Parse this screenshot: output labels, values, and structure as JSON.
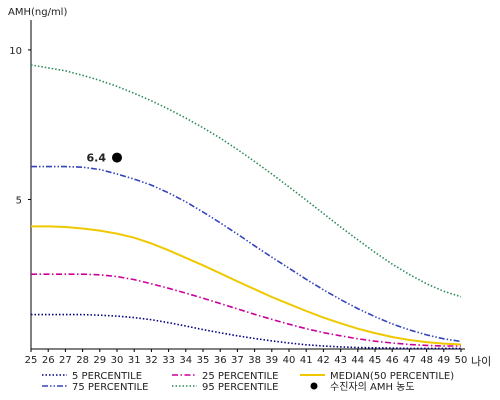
{
  "chart_data": {
    "type": "line",
    "ylabel": "AMH(ng/ml)",
    "xlabel": "나이",
    "xlim": [
      25,
      50
    ],
    "ylim": [
      0,
      11
    ],
    "x_ticks": [
      25,
      26,
      27,
      28,
      29,
      30,
      31,
      32,
      33,
      34,
      35,
      36,
      37,
      38,
      39,
      40,
      41,
      42,
      43,
      44,
      45,
      46,
      47,
      48,
      49,
      50
    ],
    "y_ticks": [
      5,
      10
    ],
    "grid": false,
    "legend_position": "bottom",
    "x": [
      25,
      26,
      27,
      28,
      29,
      30,
      31,
      32,
      33,
      34,
      35,
      36,
      37,
      38,
      39,
      40,
      41,
      42,
      43,
      44,
      45,
      46,
      47,
      48,
      49,
      50
    ],
    "series": [
      {
        "name": "5 PERCENTILE",
        "color": "#000080",
        "dash": "dotted",
        "values": [
          1.15,
          1.15,
          1.15,
          1.15,
          1.13,
          1.1,
          1.05,
          0.98,
          0.88,
          0.77,
          0.65,
          0.54,
          0.44,
          0.35,
          0.27,
          0.2,
          0.14,
          0.1,
          0.07,
          0.05,
          0.04,
          0.03,
          0.02,
          0.02,
          0.02,
          0.02
        ]
      },
      {
        "name": "25 PERCENTILE",
        "color": "#cc0099",
        "dash": "dashdot",
        "values": [
          2.5,
          2.5,
          2.5,
          2.5,
          2.48,
          2.42,
          2.32,
          2.18,
          2.03,
          1.87,
          1.7,
          1.52,
          1.34,
          1.16,
          0.99,
          0.83,
          0.68,
          0.55,
          0.44,
          0.34,
          0.26,
          0.2,
          0.15,
          0.12,
          0.1,
          0.1
        ]
      },
      {
        "name": "MEDIAN(50 PERCENTILE)",
        "color": "#f0c800",
        "dash": "solid",
        "values": [
          4.1,
          4.1,
          4.08,
          4.03,
          3.96,
          3.86,
          3.72,
          3.53,
          3.3,
          3.05,
          2.8,
          2.53,
          2.26,
          2.0,
          1.74,
          1.5,
          1.27,
          1.05,
          0.86,
          0.68,
          0.53,
          0.4,
          0.3,
          0.23,
          0.18,
          0.15
        ]
      },
      {
        "name": "75 PERCENTILE",
        "color": "#3344bb",
        "dash": "dashdotdot",
        "values": [
          6.1,
          6.1,
          6.1,
          6.08,
          6.0,
          5.85,
          5.68,
          5.48,
          5.22,
          4.92,
          4.58,
          4.22,
          3.84,
          3.45,
          3.07,
          2.7,
          2.33,
          1.98,
          1.65,
          1.35,
          1.08,
          0.84,
          0.64,
          0.47,
          0.34,
          0.25
        ]
      },
      {
        "name": "95 PERCENTILE",
        "color": "#2e8b57",
        "dash": "dotted",
        "values": [
          9.5,
          9.4,
          9.3,
          9.15,
          8.98,
          8.78,
          8.55,
          8.3,
          8.02,
          7.72,
          7.4,
          7.05,
          6.67,
          6.27,
          5.85,
          5.42,
          4.98,
          4.53,
          4.08,
          3.65,
          3.23,
          2.84,
          2.49,
          2.18,
          1.93,
          1.75
        ]
      }
    ],
    "points": [
      {
        "name": "수진자의 AMH 농도",
        "x": 30,
        "y": 6.4,
        "label": "6.4",
        "color": "#000000"
      }
    ]
  }
}
